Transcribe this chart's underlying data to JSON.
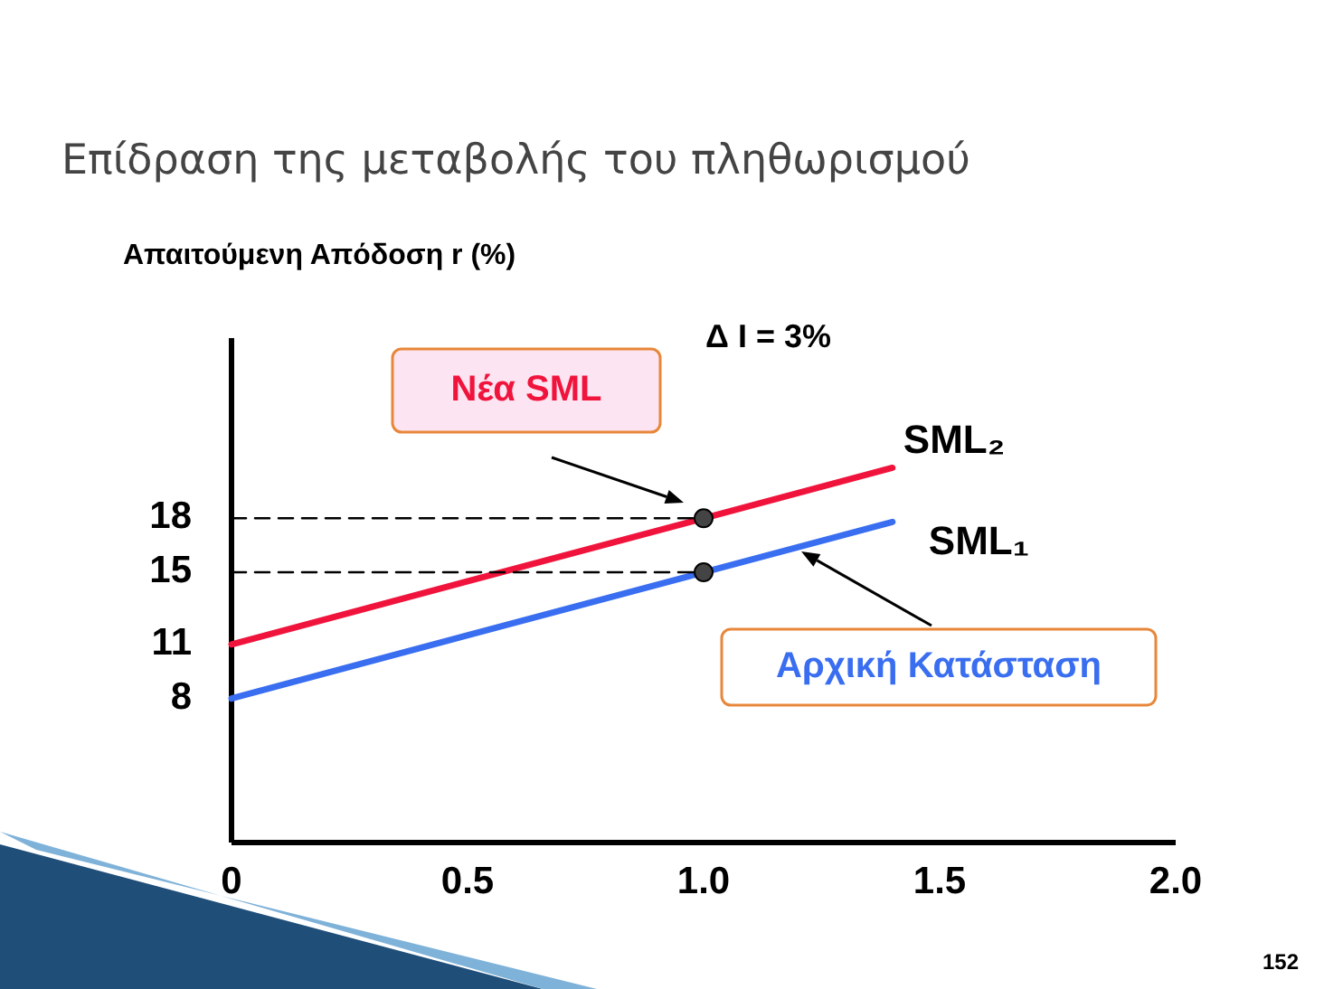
{
  "chart_data": {
    "type": "line",
    "title": "Επίδραση της μεταβολής του πληθωρισμού",
    "ylabel": "Απαιτούμενη Απόδοση r (%)",
    "xlim": [
      0,
      2
    ],
    "xticks": [
      0,
      0.5,
      {
        "value": 1,
        "label": "1.0"
      },
      1.5,
      {
        "value": 2,
        "label": "2.0"
      }
    ],
    "ylim": [
      0,
      28
    ],
    "yticks": [
      8,
      11,
      15,
      18
    ],
    "grid": false,
    "marker": "none",
    "series": [
      {
        "name": "SML₂",
        "color": "#f0143c",
        "x": [
          0,
          1.4
        ],
        "values": [
          11,
          20.8
        ]
      },
      {
        "name": "SML₁",
        "color": "#3a6ef0",
        "x": [
          0,
          1.4
        ],
        "values": [
          8,
          17.8
        ]
      },
      {
        "color": "#000000",
        "x": [
          0,
          1
        ],
        "values": [
          18,
          18
        ],
        "line_style": "dashed"
      },
      {
        "color": "#000000",
        "x": [
          0,
          1
        ],
        "values": [
          15,
          15
        ],
        "line_style": "dashed"
      },
      {
        "type": "scatter",
        "color": "#444444",
        "x": [
          1,
          1
        ],
        "values": [
          18,
          15
        ],
        "marker": "circle"
      }
    ],
    "annotations": [
      "Δ I = 3%",
      "Νέα  SML",
      "Αρχική Κατάσταση",
      "152"
    ]
  }
}
